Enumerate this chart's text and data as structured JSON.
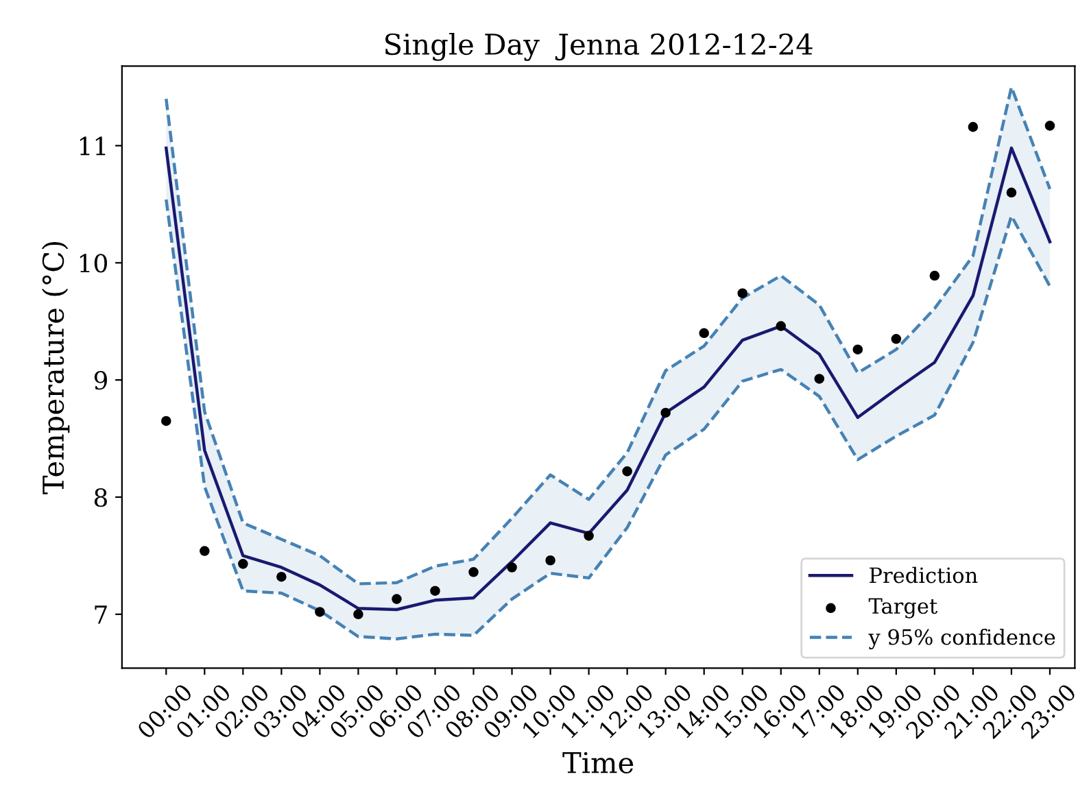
{
  "chart_data": {
    "type": "line",
    "title": "Single Day  Jenna 2012-12-24",
    "xlabel": "Time",
    "ylabel": "Temperature (°C)",
    "categories": [
      "00:00",
      "01:00",
      "02:00",
      "03:00",
      "04:00",
      "05:00",
      "06:00",
      "07:00",
      "08:00",
      "09:00",
      "10:00",
      "11:00",
      "12:00",
      "13:00",
      "14:00",
      "15:00",
      "16:00",
      "17:00",
      "18:00",
      "19:00",
      "20:00",
      "21:00",
      "22:00",
      "23:00"
    ],
    "series": [
      {
        "name": "Prediction",
        "color": "#191970",
        "values": [
          10.98,
          8.4,
          7.5,
          7.4,
          7.25,
          7.05,
          7.04,
          7.12,
          7.14,
          7.45,
          7.78,
          7.69,
          8.06,
          8.72,
          8.94,
          9.34,
          9.46,
          9.22,
          8.68,
          8.92,
          9.15,
          9.72,
          10.98,
          10.18
        ],
        "lower": [
          10.54,
          8.09,
          7.2,
          7.18,
          7.03,
          6.81,
          6.79,
          6.83,
          6.82,
          7.13,
          7.35,
          7.31,
          7.74,
          8.36,
          8.58,
          8.99,
          9.09,
          8.86,
          8.32,
          8.52,
          8.7,
          9.32,
          10.4,
          9.8
        ],
        "upper": [
          11.4,
          8.73,
          7.78,
          7.64,
          7.5,
          7.26,
          7.27,
          7.41,
          7.47,
          7.82,
          8.19,
          7.98,
          8.38,
          9.08,
          9.29,
          9.7,
          9.89,
          9.64,
          9.06,
          9.26,
          9.61,
          10.06,
          11.5,
          10.63
        ]
      },
      {
        "name": "Target",
        "type": "scatter",
        "color": "#000000",
        "marker": "circle",
        "values": [
          8.65,
          7.54,
          7.43,
          7.32,
          7.02,
          7.0,
          7.13,
          7.2,
          7.36,
          7.4,
          7.46,
          7.67,
          8.22,
          8.72,
          9.4,
          9.74,
          9.46,
          9.01,
          9.26,
          9.35,
          9.89,
          11.16,
          10.6,
          11.17
        ]
      },
      {
        "name": "y 95% confidence",
        "color": "#4682b4",
        "line_style": "dashed",
        "values": [
          11.4,
          8.73,
          7.78,
          7.64,
          7.5,
          7.26,
          7.27,
          7.41,
          7.47,
          7.82,
          8.19,
          7.98,
          8.38,
          9.08,
          9.29,
          9.7,
          9.89,
          9.64,
          9.06,
          9.26,
          9.61,
          10.06,
          11.5,
          10.63
        ]
      },
      {
        "color": "#4682b4",
        "line_style": "dashed",
        "values": [
          10.54,
          8.09,
          7.2,
          7.18,
          7.03,
          6.81,
          6.79,
          6.83,
          6.82,
          7.13,
          7.35,
          7.31,
          7.74,
          8.36,
          8.58,
          8.99,
          9.09,
          8.86,
          8.32,
          8.52,
          8.7,
          9.32,
          10.4,
          9.8
        ]
      }
    ],
    "ylim": [
      6.54,
      11.68
    ],
    "yticks": [
      7,
      8,
      9,
      10,
      11
    ],
    "grid": false,
    "legend": "bottom right"
  }
}
